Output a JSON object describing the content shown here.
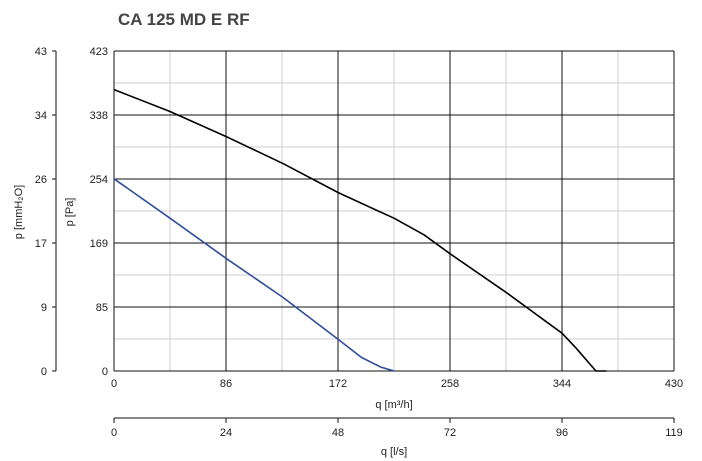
{
  "chart_data": {
    "type": "line",
    "title": "CA 125 MD E RF",
    "xlabel": "q [m³/h]",
    "xlabel_secondary": "q [l/s]",
    "ylabel": "p [Pa]",
    "ylabel_secondary": "p [mmH₂O]",
    "xlim": [
      0,
      430
    ],
    "ylim": [
      0,
      423
    ],
    "x_ticks": [
      "0",
      "86",
      "172",
      "258",
      "344",
      "430"
    ],
    "x_ticks_secondary": [
      "0",
      "24",
      "48",
      "72",
      "96",
      "119"
    ],
    "y_ticks": [
      "0",
      "85",
      "169",
      "254",
      "338",
      "423"
    ],
    "y_ticks_secondary": [
      "0",
      "9",
      "17",
      "26",
      "34",
      "43"
    ],
    "grid": true,
    "series": [
      {
        "color": "#000000",
        "x": [
          0,
          43,
          86,
          130,
          172,
          215,
          238,
          258,
          301,
          344,
          355,
          370,
          378
        ],
        "y": [
          372,
          343,
          310,
          274,
          236,
          202,
          180,
          155,
          104,
          50,
          30,
          0,
          0
        ]
      },
      {
        "color": "#2e4d9a",
        "x": [
          0,
          43,
          86,
          130,
          172,
          190,
          205,
          215
        ],
        "y": [
          254,
          202,
          149,
          97,
          42,
          18,
          5,
          0
        ]
      }
    ]
  }
}
